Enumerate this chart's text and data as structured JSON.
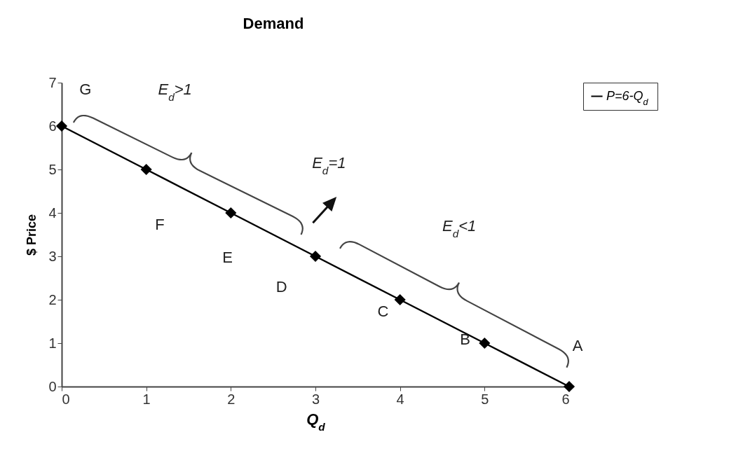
{
  "chart_data": {
    "type": "line",
    "title": "Demand",
    "xlabel": "Q$_{d}$",
    "ylabel": "$ Price",
    "x": [
      0,
      1,
      2,
      3,
      4,
      5,
      6
    ],
    "series": [
      {
        "name": "P=6-Q$_{d}$",
        "color": "#000000",
        "values": [
          6,
          5,
          4,
          3,
          2,
          1,
          0
        ]
      }
    ],
    "xlim": [
      0,
      6
    ],
    "ylim": [
      0,
      7
    ],
    "xticks": [
      0,
      1,
      2,
      3,
      4,
      5,
      6
    ],
    "yticks": [
      0,
      1,
      2,
      3,
      4,
      5,
      6,
      7
    ],
    "grid": false,
    "legend": "right",
    "marker": "diamond",
    "line_style": "solid",
    "annotations": [
      "G",
      "F",
      "E",
      "D",
      "C",
      "B",
      "A",
      "E$_{d}$>1",
      "E$_{d}$=1",
      "E$_{d}$<1"
    ]
  }
}
